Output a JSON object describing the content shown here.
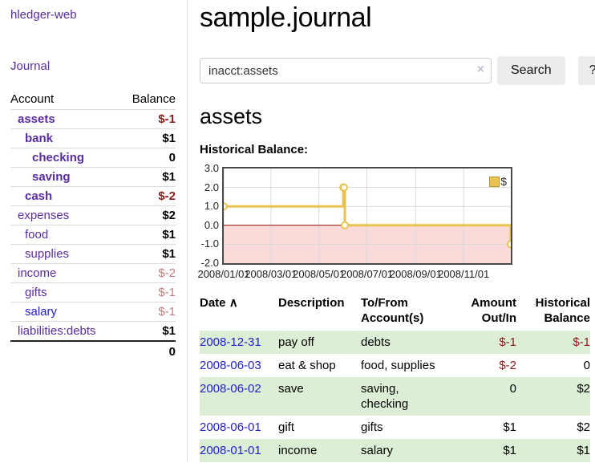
{
  "sidebar": {
    "brand": "hledger-web",
    "nav_journal": "Journal",
    "accounts_table": {
      "col_account": "Account",
      "col_balance": "Balance",
      "rows": [
        {
          "name": "assets",
          "indent": 1,
          "bold": true,
          "balance": "$-1",
          "neg": "dark"
        },
        {
          "name": "bank",
          "indent": 2,
          "bold": true,
          "balance": "$1"
        },
        {
          "name": "checking",
          "indent": 3,
          "bold": true,
          "balance": "0"
        },
        {
          "name": "saving",
          "indent": 3,
          "bold": true,
          "balance": "$1"
        },
        {
          "name": "cash",
          "indent": 2,
          "bold": true,
          "balance": "$-2",
          "neg": "dark"
        },
        {
          "name": "expenses",
          "indent": 1,
          "bold": false,
          "balance": "$2"
        },
        {
          "name": "food",
          "indent": 2,
          "bold": false,
          "balance": "$1"
        },
        {
          "name": "supplies",
          "indent": 2,
          "bold": false,
          "balance": "$1"
        },
        {
          "name": "income",
          "indent": 1,
          "bold": false,
          "balance": "$-2",
          "neg": "light"
        },
        {
          "name": "gifts",
          "indent": 2,
          "bold": false,
          "balance": "$-1",
          "neg": "light"
        },
        {
          "name": "salary",
          "indent": 2,
          "bold": false,
          "balance": "$-1",
          "neg": "light",
          "blue": true
        },
        {
          "name": "liabilities:debts",
          "indent": 1,
          "bold": false,
          "balance": "$1"
        }
      ],
      "total": "0"
    }
  },
  "header": {
    "title": "sample.journal"
  },
  "search": {
    "value": "inacct:assets",
    "clear_icon": "×",
    "button": "Search",
    "help_button": "?"
  },
  "account_page": {
    "heading": "assets",
    "chart_label": "Historical Balance:"
  },
  "chart_data": {
    "type": "line",
    "title": "Historical Balance:",
    "step": true,
    "legend": "$",
    "legend_position": "top-right",
    "x_range": [
      "2008-01-01",
      "2008-12-31"
    ],
    "ylim": [
      -2,
      3
    ],
    "y_ticks": [
      "3.0",
      "2.0",
      "1.0",
      "0.0",
      "-1.0",
      "-2.0"
    ],
    "x_ticks": [
      "2008/01/01",
      "2008/03/01",
      "2008/05/01",
      "2008/07/01",
      "2008/09/01",
      "2008/11/01"
    ],
    "series": [
      {
        "name": "$",
        "color": "#e8c34e",
        "points": [
          [
            "2008-01-01",
            1
          ],
          [
            "2008-06-01",
            2
          ],
          [
            "2008-06-02",
            2
          ],
          [
            "2008-06-03",
            0
          ],
          [
            "2008-12-31",
            -1
          ]
        ]
      }
    ],
    "grid": true,
    "zero_line_color": "#8b0000",
    "negative_region_fill": "#fbdada"
  },
  "register_table": {
    "headers": {
      "date": "Date",
      "sort_icon": "∧",
      "description": "Description",
      "tofrom_1": "To/From",
      "tofrom_2": "Account(s)",
      "amount_1": "Amount",
      "amount_2": "Out/In",
      "hist_1": "Historical",
      "hist_2": "Balance"
    },
    "rows": [
      {
        "date": "2008-12-31",
        "description": "pay off",
        "accounts": "debts",
        "amount": "$-1",
        "amount_neg": true,
        "balance": "$-1",
        "balance_neg": true,
        "shaded": true
      },
      {
        "date": "2008-06-03",
        "description": "eat & shop",
        "accounts": "food, supplies",
        "amount": "$-2",
        "amount_neg": true,
        "balance": "0",
        "balance_neg": false,
        "shaded": false
      },
      {
        "date": "2008-06-02",
        "description": "save",
        "accounts": "saving, checking",
        "amount": "0",
        "amount_neg": false,
        "balance": "$2",
        "balance_neg": false,
        "shaded": true
      },
      {
        "date": "2008-06-01",
        "description": "gift",
        "accounts": "gifts",
        "amount": "$1",
        "amount_neg": false,
        "balance": "$2",
        "balance_neg": false,
        "shaded": false
      },
      {
        "date": "2008-01-01",
        "description": "income",
        "accounts": "salary",
        "amount": "$1",
        "amount_neg": false,
        "balance": "$1",
        "balance_neg": false,
        "shaded": true
      }
    ]
  },
  "colors": {
    "link_purple": "#5a2ca0",
    "link_blue": "#2222cc",
    "negative_dark": "#8b1a1a",
    "negative_light": "#bd7d7d",
    "row_shade_green": "#ddeed6",
    "chart_line_gold": "#e8c34e",
    "chart_negative_fill": "#fbdada",
    "chart_zero_line": "#8b0000"
  }
}
